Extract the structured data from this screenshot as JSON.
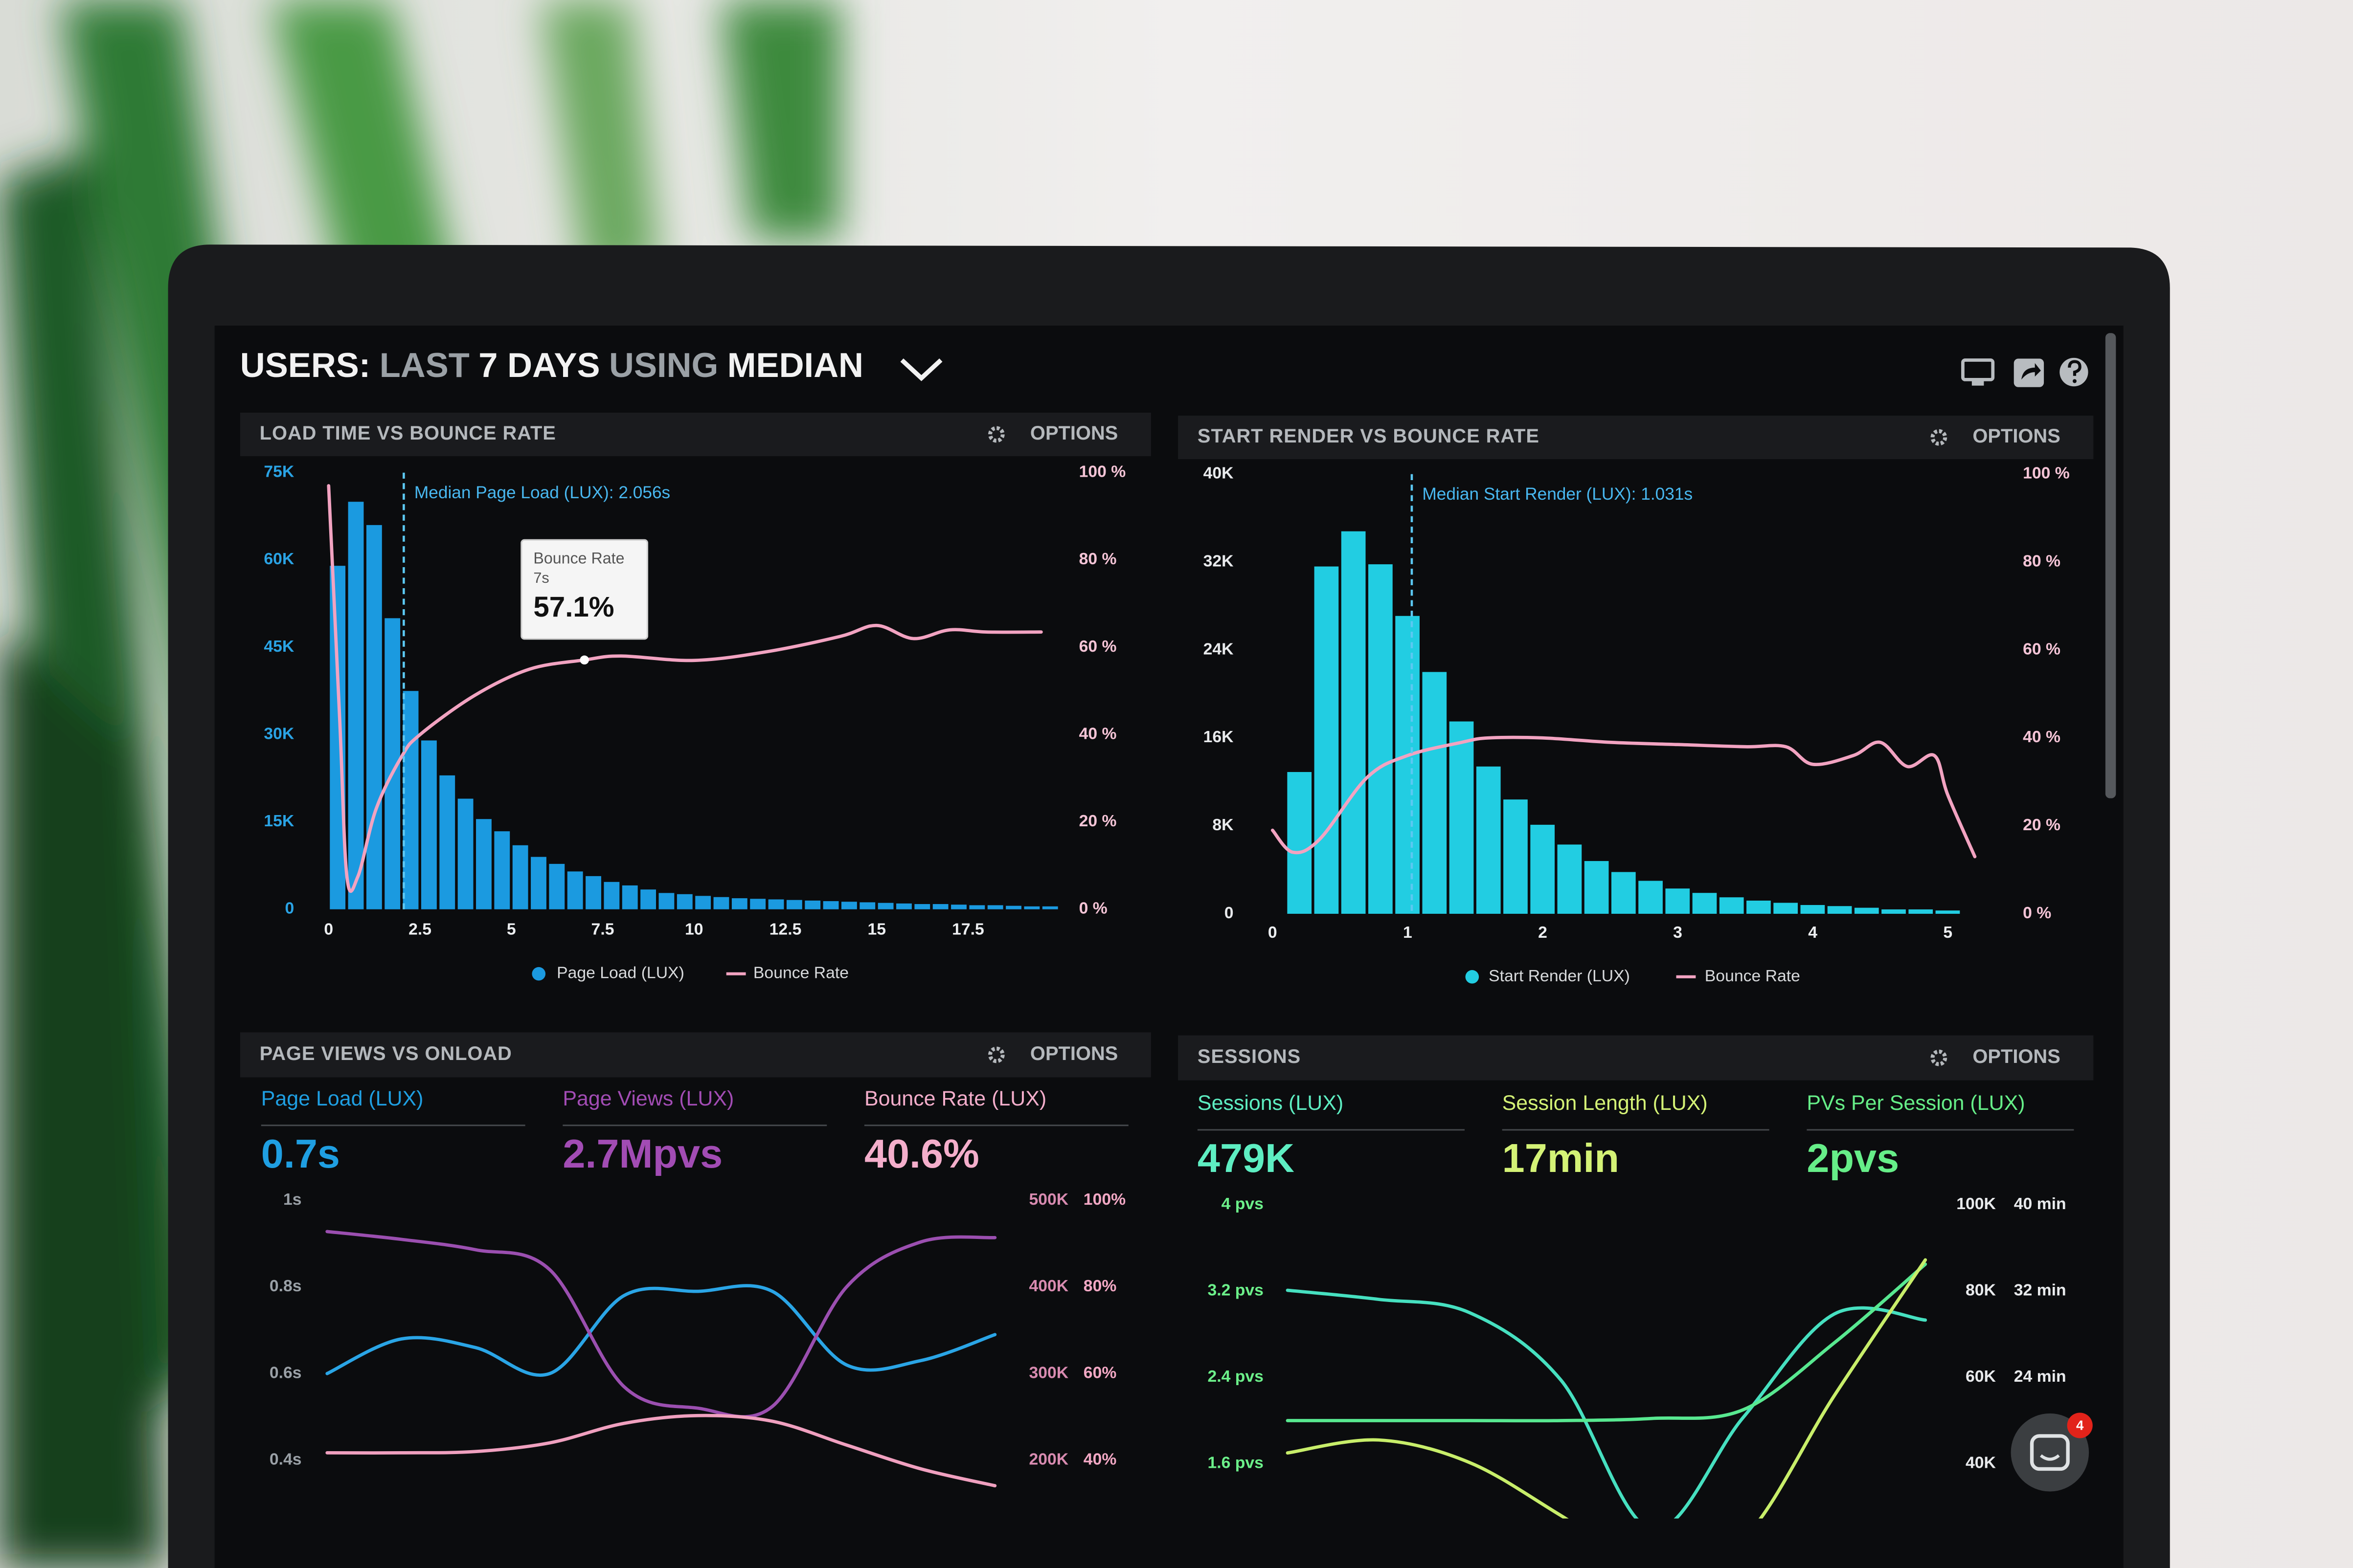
{
  "header": {
    "title_parts": [
      {
        "text": "USERS:",
        "muted": false
      },
      {
        "text": "LAST",
        "muted": true
      },
      {
        "text": "7 DAYS",
        "muted": false
      },
      {
        "text": "USING",
        "muted": true
      },
      {
        "text": "MEDIAN",
        "muted": false
      }
    ]
  },
  "panels": [
    {
      "title": "LOAD TIME VS BOUNCE RATE",
      "options": "OPTIONS",
      "chart": {
        "type": "histogram",
        "xlim": [
          0,
          20
        ],
        "xticks": [
          0,
          2.5,
          5,
          7.5,
          10,
          12.5,
          15,
          17.5
        ],
        "ylim": [
          0,
          75000
        ],
        "yticks": [
          0,
          {
            "value": 15000,
            "label": "15K"
          },
          {
            "value": 30000,
            "label": "30K"
          },
          {
            "value": 45000,
            "label": "45K"
          },
          {
            "value": 60000,
            "label": "60K"
          },
          {
            "value": 75000,
            "label": "75K"
          }
        ],
        "y2lim": [
          0,
          100
        ],
        "y2ticks": [
          {
            "value": 0,
            "label": "0 %"
          },
          {
            "value": 20,
            "label": "20 %"
          },
          {
            "value": 40,
            "label": "40 %"
          },
          {
            "value": 60,
            "label": "60 %"
          },
          {
            "value": 80,
            "label": "80 %"
          },
          {
            "value": 100,
            "label": "100 %"
          }
        ],
        "median": {
          "label": "Median Page Load (LUX): 2.056s",
          "x": 2.056
        },
        "tooltip": {
          "title": "Bounce Rate",
          "x_label": "7s",
          "x": 7,
          "value": 57.1,
          "value_label": "57.1%"
        },
        "series": [
          {
            "type": "bar",
            "name": "Page Load (LUX)",
            "color": "#1b9ae0",
            "bins": [
              0,
              0.5,
              1,
              1.5,
              2,
              2.5,
              3,
              3.5,
              4,
              4.5,
              5,
              5.5,
              6,
              6.5,
              7,
              7.5,
              8,
              8.5,
              9,
              9.5,
              10,
              10.5,
              11,
              11.5,
              12,
              12.5,
              13,
              13.5,
              14,
              14.5,
              15,
              15.5,
              16,
              16.5,
              17,
              17.5,
              18,
              18.5,
              19,
              19.5,
              20
            ],
            "values": [
              59000,
              70000,
              66000,
              50000,
              37500,
              29000,
              23000,
              19000,
              15500,
              13400,
              11000,
              9000,
              7800,
              6500,
              5700,
              4700,
              4100,
              3400,
              2800,
              2600,
              2300,
              2100,
              1900,
              1800,
              1700,
              1600,
              1500,
              1400,
              1300,
              1200,
              1100,
              1000,
              900,
              900,
              800,
              700,
              700,
              600,
              500,
              500
            ]
          },
          {
            "type": "line",
            "name": "Bounce Rate",
            "color": "#f2a3c1",
            "axis": "y2",
            "x": [
              0,
              0.3,
              0.5,
              0.8,
              1.3,
              2,
              2.5,
              4,
              5.5,
              7,
              8,
              10,
              12,
              14,
              15,
              16,
              17,
              18,
              19.5
            ],
            "values": [
              97,
              44,
              7.5,
              7.5,
              23,
              35,
              40,
              49,
              55,
              57.1,
              58,
              57,
              59,
              62.5,
              65,
              62,
              64,
              63.5,
              63.5
            ]
          }
        ]
      }
    },
    {
      "title": "START RENDER VS BOUNCE RATE",
      "options": "OPTIONS",
      "chart": {
        "type": "histogram",
        "xlim": [
          -0.1,
          5.2
        ],
        "xticks": [
          0,
          1,
          2,
          3,
          4,
          5
        ],
        "ylim": [
          0,
          40000
        ],
        "yticks": [
          0,
          {
            "value": 8000,
            "label": "8K"
          },
          {
            "value": 16000,
            "label": "16K"
          },
          {
            "value": 24000,
            "label": "24K"
          },
          {
            "value": 32000,
            "label": "32K"
          },
          {
            "value": 40000,
            "label": "40K"
          }
        ],
        "y2lim": [
          0,
          100
        ],
        "y2ticks": [
          {
            "value": 0,
            "label": "0 %"
          },
          {
            "value": 20,
            "label": "20 %"
          },
          {
            "value": 40,
            "label": "40 %"
          },
          {
            "value": 60,
            "label": "60 %"
          },
          {
            "value": 80,
            "label": "80 %"
          },
          {
            "value": 100,
            "label": "100 %"
          }
        ],
        "median": {
          "label": "Median Start Render (LUX): 1.031s",
          "x": 1.031
        },
        "series": [
          {
            "type": "bar",
            "name": "Start Render (LUX)",
            "color": "#22cde2",
            "bins": [
              0.1,
              0.3,
              0.5,
              0.7,
              0.9,
              1.1,
              1.3,
              1.5,
              1.7,
              1.9,
              2.1,
              2.3,
              2.5,
              2.7,
              2.9,
              3.1,
              3.3,
              3.5,
              3.7,
              3.9,
              4.1,
              4.3,
              4.5,
              4.7,
              4.9,
              5.1
            ],
            "values": [
              12900,
              31600,
              34800,
              31800,
              27100,
              22000,
              17500,
              13400,
              10400,
              8100,
              6300,
              4800,
              3800,
              3000,
              2300,
              1900,
              1500,
              1200,
              1000,
              800,
              700,
              550,
              400,
              400,
              300
            ]
          },
          {
            "type": "line",
            "name": "Bounce Rate",
            "color": "#f2a3c1",
            "axis": "y2",
            "x": [
              0,
              0.15,
              0.35,
              0.7,
              1.0,
              1.4,
              1.6,
              2.0,
              2.5,
              3.0,
              3.5,
              3.8,
              4.0,
              4.3,
              4.5,
              4.7,
              4.9,
              5.0,
              5.2
            ],
            "values": [
              19,
              14,
              17,
              31,
              36,
              39,
              40,
              40,
              39,
              38.5,
              38,
              38,
              34,
              36,
              39,
              33.5,
              36,
              27,
              13
            ]
          }
        ]
      }
    },
    {
      "title": "PAGE VIEWS VS ONLOAD",
      "options": "OPTIONS",
      "stats": [
        {
          "label": "Page Load (LUX)",
          "value": "0.7s"
        },
        {
          "label": "Page Views (LUX)",
          "value": "2.7Mpvs"
        },
        {
          "label": "Bounce Rate (LUX)",
          "value": "40.6%"
        }
      ],
      "chart": {
        "type": "line",
        "ylim": [
          0.3,
          1
        ],
        "yticks": [
          {
            "value": 1,
            "label": "1s"
          },
          {
            "value": 0.8,
            "label": "0.8s"
          },
          {
            "value": 0.6,
            "label": "0.6s"
          },
          {
            "value": 0.4,
            "label": "0.4s"
          }
        ],
        "y2lim": [
          150000,
          500000
        ],
        "y2ticks": [
          {
            "value": 500000,
            "label": "500K"
          },
          {
            "value": 400000,
            "label": "400K"
          },
          {
            "value": 300000,
            "label": "300K"
          },
          {
            "value": 200000,
            "label": "200K"
          }
        ],
        "y3lim": [
          30,
          100
        ],
        "y3ticks": [
          {
            "value": 100,
            "label": "100%"
          },
          {
            "value": 80,
            "label": "80%"
          },
          {
            "value": 60,
            "label": "60%"
          },
          {
            "value": 40,
            "label": "40%"
          }
        ],
        "series": [
          {
            "type": "line",
            "color": "#2aa5e6",
            "axis": "y",
            "values": [
              0.6,
              0.68,
              0.66,
              0.6,
              0.78,
              0.79,
              0.79,
              0.62,
              0.63,
              0.69
            ]
          },
          {
            "type": "line",
            "color": "#9b4fb0",
            "axis": "y2",
            "values": [
              464000,
              455000,
              443000,
              420000,
              285000,
              260000,
              262000,
              400000,
              452000,
              457000
            ]
          },
          {
            "type": "line",
            "color": "#f0a0bf",
            "axis": "y3",
            "values": [
              41.7,
              41.7,
              42,
              44,
              48.5,
              50.3,
              49,
              43.5,
              38,
              34.1
            ]
          }
        ]
      }
    },
    {
      "title": "SESSIONS",
      "options": "OPTIONS",
      "stats": [
        {
          "label": "Sessions (LUX)",
          "value": "479K"
        },
        {
          "label": "Session Length (LUX)",
          "value": "17min"
        },
        {
          "label": "PVs Per Session (LUX)",
          "value": "2pvs"
        }
      ],
      "chart": {
        "type": "line",
        "ylim": [
          0.8,
          4
        ],
        "yticks": [
          {
            "value": 4,
            "label": "4 pvs"
          },
          {
            "value": 3.2,
            "label": "3.2 pvs"
          },
          {
            "value": 2.4,
            "label": "2.4 pvs"
          },
          {
            "value": 1.6,
            "label": "1.6 pvs"
          }
        ],
        "y2lim": [
          20000,
          100000
        ],
        "y2ticks": [
          {
            "value": 100000,
            "label": "100K"
          },
          {
            "value": 80000,
            "label": "80K"
          },
          {
            "value": 60000,
            "label": "60K"
          },
          {
            "value": 40000,
            "label": "40K"
          }
        ],
        "y3lim": [
          8,
          40
        ],
        "y3ticks": [
          {
            "value": 40,
            "label": "40 min"
          },
          {
            "value": 32,
            "label": "32 min"
          },
          {
            "value": 24,
            "label": "24 min"
          }
        ],
        "series": [
          {
            "type": "line",
            "color": "#46e0c0",
            "axis": "y2",
            "values": [
              80200,
              78100,
              75000,
              59400,
              24700,
              50700,
              74700,
              73300
            ]
          },
          {
            "type": "line",
            "color": "#58e890",
            "axis": "y",
            "values": [
              2.0,
              2.0,
              2.0,
              2.0,
              2.02,
              2.1,
              2.72,
              3.45
            ]
          },
          {
            "type": "line",
            "color": "#c8ee6a",
            "axis": "y3",
            "values": [
              17,
              18.2,
              16.1,
              11.2,
              6,
              9,
              22.3,
              34.9
            ]
          }
        ]
      }
    }
  ],
  "chat": {
    "badge": 4
  }
}
